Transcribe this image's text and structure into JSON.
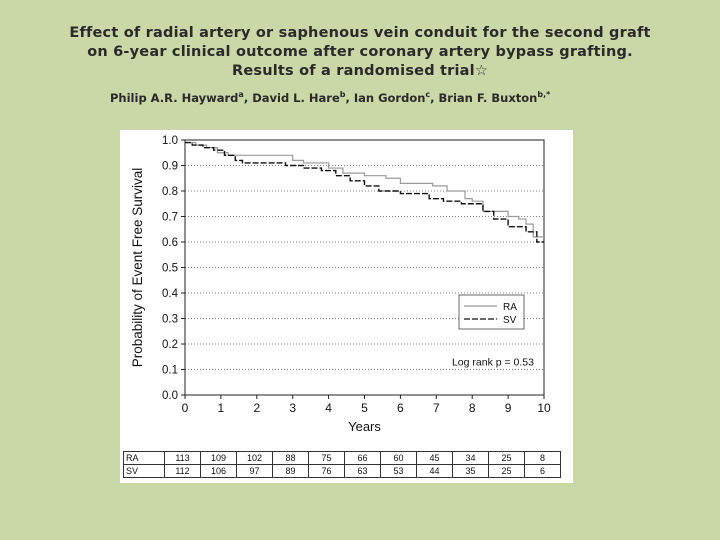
{
  "title_lines": [
    "Effect of radial artery or saphenous vein conduit for the second graft",
    "on 6-year clinical outcome after coronary artery bypass grafting.",
    "Results of a randomised trial☆"
  ],
  "authors": [
    {
      "name": "Philip A.R. Hayward",
      "sup": "a",
      "sep": ", "
    },
    {
      "name": "David L. Hare",
      "sup": "b",
      "sep": ", "
    },
    {
      "name": "Ian Gordon",
      "sup": "c",
      "sep": ", "
    },
    {
      "name": "Brian F. Buxton",
      "sup": "b,*",
      "sep": ""
    }
  ],
  "chart_data": {
    "type": "line",
    "xlabel": "Years",
    "ylabel": "Probability of Event Free Survival",
    "xlim": [
      0,
      10
    ],
    "ylim": [
      0.0,
      1.0
    ],
    "x_ticks": [
      "0",
      "1",
      "2",
      "3",
      "4",
      "5",
      "6",
      "7",
      "8",
      "9",
      "10"
    ],
    "y_ticks": [
      "0.0",
      "0.1",
      "0.2",
      "0.3",
      "0.4",
      "0.5",
      "0.6",
      "0.7",
      "0.8",
      "0.9",
      "1.0"
    ],
    "grid": "horizontal dotted",
    "legend_position": "center-right",
    "annotation": "Log rank p = 0.53",
    "series": [
      {
        "name": "RA",
        "color": "#9a9a9a",
        "style": "solid",
        "steps": [
          [
            0,
            0.99
          ],
          [
            0.3,
            0.98
          ],
          [
            0.6,
            0.97
          ],
          [
            0.9,
            0.95
          ],
          [
            1.2,
            0.94
          ],
          [
            3.0,
            0.92
          ],
          [
            3.3,
            0.91
          ],
          [
            4.0,
            0.89
          ],
          [
            4.4,
            0.87
          ],
          [
            5.0,
            0.86
          ],
          [
            5.6,
            0.85
          ],
          [
            6.0,
            0.83
          ],
          [
            6.9,
            0.82
          ],
          [
            7.3,
            0.8
          ],
          [
            7.8,
            0.77
          ],
          [
            8.0,
            0.76
          ],
          [
            8.3,
            0.72
          ],
          [
            9.0,
            0.7
          ],
          [
            9.3,
            0.69
          ],
          [
            9.5,
            0.67
          ],
          [
            9.7,
            0.62
          ],
          [
            10.0,
            0.62
          ]
        ]
      },
      {
        "name": "SV",
        "color": "#111111",
        "style": "dashed",
        "steps": [
          [
            0,
            0.99
          ],
          [
            0.2,
            0.98
          ],
          [
            0.5,
            0.97
          ],
          [
            0.8,
            0.96
          ],
          [
            1.1,
            0.94
          ],
          [
            1.4,
            0.92
          ],
          [
            1.6,
            0.91
          ],
          [
            2.8,
            0.9
          ],
          [
            3.3,
            0.89
          ],
          [
            3.8,
            0.88
          ],
          [
            4.2,
            0.86
          ],
          [
            4.6,
            0.84
          ],
          [
            5.0,
            0.82
          ],
          [
            5.4,
            0.8
          ],
          [
            6.0,
            0.79
          ],
          [
            6.8,
            0.77
          ],
          [
            7.2,
            0.76
          ],
          [
            7.7,
            0.75
          ],
          [
            8.3,
            0.72
          ],
          [
            8.6,
            0.69
          ],
          [
            9.0,
            0.66
          ],
          [
            9.5,
            0.64
          ],
          [
            9.8,
            0.6
          ],
          [
            10.0,
            0.6
          ]
        ]
      }
    ]
  },
  "risk_table": [
    {
      "label": "RA",
      "values": [
        "113",
        "109",
        "102",
        "88",
        "75",
        "66",
        "60",
        "45",
        "34",
        "25",
        "8"
      ]
    },
    {
      "label": "SV",
      "values": [
        "112",
        "106",
        "97",
        "89",
        "76",
        "63",
        "53",
        "44",
        "35",
        "25",
        "6"
      ]
    }
  ]
}
